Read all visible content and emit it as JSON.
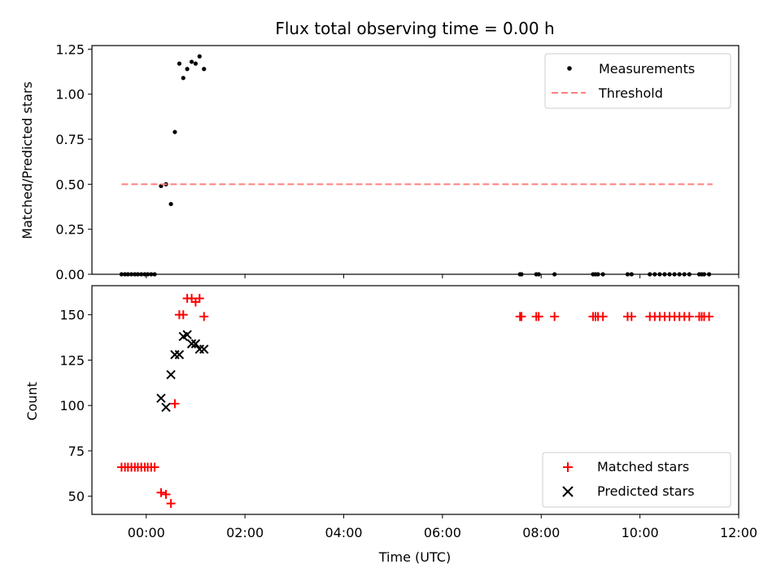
{
  "title": "Flux total observing time = 0.00 h",
  "chart_data": [
    {
      "type": "scatter",
      "ylabel": "Matched/Predicted stars",
      "xlim_hours": [
        -1.1,
        12.0
      ],
      "ylim": [
        0,
        1.27
      ],
      "yticks": [
        0.0,
        0.25,
        0.5,
        0.75,
        1.0,
        1.25
      ],
      "ytick_labels": [
        "0.00",
        "0.25",
        "0.50",
        "0.75",
        "1.00",
        "1.25"
      ],
      "legend_position": "top-right",
      "series": [
        {
          "name": "Measurements",
          "kind": "dot",
          "color": "#000000",
          "x": [
            -0.5,
            -0.43,
            -0.37,
            -0.3,
            -0.23,
            -0.17,
            -0.1,
            -0.03,
            0.03,
            0.1,
            0.17,
            0.3,
            0.4,
            0.5,
            0.58,
            0.67,
            0.75,
            0.83,
            0.92,
            1.0,
            1.08,
            1.17,
            7.57,
            7.6,
            7.9,
            7.95,
            8.27,
            9.05,
            9.1,
            9.15,
            9.25,
            9.75,
            9.83,
            10.2,
            10.3,
            10.4,
            10.5,
            10.6,
            10.7,
            10.8,
            10.9,
            11.0,
            11.2,
            11.25,
            11.3,
            11.4
          ],
          "y": [
            0,
            0,
            0,
            0,
            0,
            0,
            0,
            0,
            0,
            0,
            0,
            0.49,
            0.5,
            0.39,
            0.79,
            1.17,
            1.09,
            1.14,
            1.18,
            1.17,
            1.21,
            1.14,
            0,
            0,
            0,
            0,
            0,
            0,
            0,
            0,
            0,
            0,
            0,
            0,
            0,
            0,
            0,
            0,
            0,
            0,
            0,
            0,
            0,
            0,
            0,
            0
          ]
        },
        {
          "name": "Threshold",
          "kind": "dashed-line",
          "color": "#ff7f7f",
          "x": [
            -0.5,
            11.47
          ],
          "y": [
            0.5,
            0.5
          ]
        }
      ]
    },
    {
      "type": "scatter",
      "xlabel": "Time (UTC)",
      "ylabel": "Count",
      "xlim_hours": [
        -1.1,
        12.0
      ],
      "ylim": [
        40,
        166
      ],
      "yticks": [
        50,
        75,
        100,
        125,
        150
      ],
      "ytick_labels": [
        "50",
        "75",
        "100",
        "125",
        "150"
      ],
      "xticks_hours": [
        0,
        2,
        4,
        6,
        8,
        10,
        12
      ],
      "xtick_labels": [
        "00:00",
        "02:00",
        "04:00",
        "06:00",
        "08:00",
        "10:00",
        "12:00"
      ],
      "legend_position": "bottom-right",
      "series": [
        {
          "name": "Matched stars",
          "kind": "plus",
          "color": "#ff0000",
          "x": [
            -0.5,
            -0.43,
            -0.37,
            -0.3,
            -0.23,
            -0.17,
            -0.1,
            -0.03,
            0.03,
            0.1,
            0.17,
            0.3,
            0.4,
            0.5,
            0.58,
            0.67,
            0.75,
            0.83,
            0.92,
            1.0,
            1.08,
            1.17,
            7.57,
            7.6,
            7.9,
            7.95,
            8.27,
            9.05,
            9.1,
            9.15,
            9.25,
            9.75,
            9.83,
            10.2,
            10.3,
            10.4,
            10.5,
            10.6,
            10.7,
            10.8,
            10.9,
            11.0,
            11.2,
            11.25,
            11.3,
            11.4
          ],
          "y": [
            66,
            66,
            66,
            66,
            66,
            66,
            66,
            66,
            66,
            66,
            66,
            52,
            51,
            46,
            101,
            150,
            150,
            159,
            159,
            157,
            159,
            149,
            149,
            149,
            149,
            149,
            149,
            149,
            149,
            149,
            149,
            149,
            149,
            149,
            149,
            149,
            149,
            149,
            149,
            149,
            149,
            149,
            149,
            149,
            149,
            149
          ]
        },
        {
          "name": "Predicted stars",
          "kind": "x",
          "color": "#000000",
          "x": [
            0.3,
            0.4,
            0.5,
            0.58,
            0.67,
            0.75,
            0.83,
            0.92,
            1.0,
            1.08,
            1.17
          ],
          "y": [
            104,
            99,
            117,
            128,
            128,
            138,
            139,
            134,
            134,
            131,
            131
          ]
        }
      ]
    }
  ]
}
